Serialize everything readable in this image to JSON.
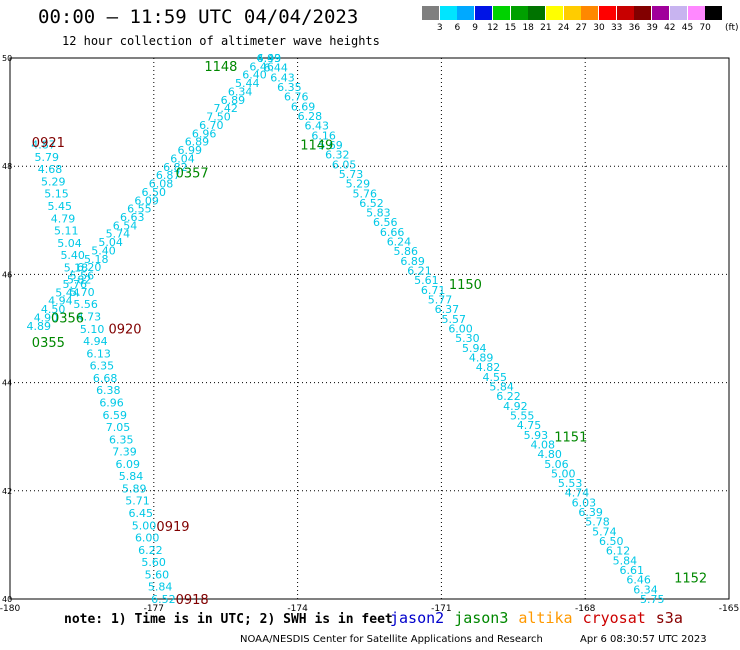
{
  "header": {
    "title": "00:00 – 11:59 UTC 04/04/2023",
    "subtitle": "12 hour collection of altimeter wave heights"
  },
  "colorbar": {
    "labels": [
      "3",
      "6",
      "9",
      "12",
      "15",
      "18",
      "21",
      "24",
      "27",
      "30",
      "33",
      "36",
      "39",
      "42",
      "45",
      "70"
    ],
    "unit": "(ft)",
    "colors": [
      "#7f7f7f",
      "#00e5ff",
      "#00a9ff",
      "#0014e6",
      "#00d200",
      "#00a000",
      "#007300",
      "#ffff00",
      "#ffcc00",
      "#ff8800",
      "#ff0000",
      "#c80000",
      "#820000",
      "#a0009b",
      "#c8b4f0",
      "#ff88ff",
      "#000000"
    ]
  },
  "chart_data": {
    "type": "scatter",
    "title": "00:00 – 11:59 UTC 04/04/2023",
    "subtitle": "12 hour collection of altimeter wave heights",
    "xlim": [
      -180,
      -165
    ],
    "ylim": [
      40,
      50
    ],
    "x_ticks": [
      "-180",
      "-177",
      "-174",
      "-171",
      "-168",
      "-165"
    ],
    "y_ticks": [
      "40",
      "42",
      "44",
      "46",
      "48",
      "50"
    ],
    "grid": true,
    "colors": {
      "swh": "#00c8e6",
      "jason3": "#008800",
      "cryosat": "#800000"
    },
    "times": [
      {
        "label": "1148",
        "sat": "jason3",
        "lon": -175.6,
        "lat": 49.85
      },
      {
        "label": "1149",
        "sat": "jason3",
        "lon": -173.6,
        "lat": 48.4
      },
      {
        "label": "0357",
        "sat": "jason3",
        "lon": -176.2,
        "lat": 47.88
      },
      {
        "label": "1150",
        "sat": "jason3",
        "lon": -170.5,
        "lat": 45.82
      },
      {
        "label": "0356",
        "sat": "jason3",
        "lon": -178.8,
        "lat": 45.2
      },
      {
        "label": "0355",
        "sat": "jason3",
        "lon": -179.2,
        "lat": 44.75
      },
      {
        "label": "1151",
        "sat": "jason3",
        "lon": -168.3,
        "lat": 43.0
      },
      {
        "label": "1152",
        "sat": "jason3",
        "lon": -165.8,
        "lat": 40.4
      },
      {
        "label": "0921",
        "sat": "cryosat",
        "lon": -179.2,
        "lat": 48.45
      },
      {
        "label": "0920",
        "sat": "cryosat",
        "lon": -177.6,
        "lat": 45.0
      },
      {
        "label": "0919",
        "sat": "cryosat",
        "lon": -176.6,
        "lat": 41.35
      },
      {
        "label": "0918",
        "sat": "cryosat",
        "lon": -176.2,
        "lat": 40.0
      }
    ],
    "tracks": [
      {
        "name": "track_desc_east",
        "start": [
          -174.6,
          50.0
        ],
        "end": [
          -166.6,
          40.0
        ],
        "values": [
          "6.49",
          "6.44",
          "6.43",
          "6.35",
          "6.76",
          "6.69",
          "6.28",
          "6.43",
          "6.16",
          "5.69",
          "6.32",
          "6.05",
          "5.73",
          "5.29",
          "5.76",
          "6.52",
          "5.83",
          "6.56",
          "6.66",
          "6.24",
          "5.86",
          "6.89",
          "6.21",
          "5.61",
          "6.71",
          "5.77",
          "6.37",
          "5.57",
          "6.00",
          "5.30",
          "5.94",
          "4.89",
          "4.82",
          "4.55",
          "5.84",
          "6.22",
          "4.92",
          "5.55",
          "4.75",
          "5.93",
          "4.08",
          "4.80",
          "5.06",
          "5.00",
          "5.53",
          "4.74",
          "6.03",
          "6.39",
          "5.78",
          "5.74",
          "6.50",
          "6.12",
          "5.84",
          "6.61",
          "6.46",
          "6.34",
          "5.75"
        ]
      },
      {
        "name": "track_asc_west",
        "start": [
          -179.4,
          45.05
        ],
        "end": [
          -174.6,
          50.0
        ],
        "values": [
          "4.89",
          "4.90",
          "4.50",
          "4.94",
          "5.44",
          "5.76",
          "5.56",
          "6.20",
          "5.18",
          "5.40",
          "5.04",
          "5.74",
          "6.54",
          "6.63",
          "6.55",
          "6.09",
          "6.50",
          "6.08",
          "6.87",
          "6.82",
          "6.04",
          "6.99",
          "6.89",
          "6.96",
          "6.70",
          "7.50",
          "7.42",
          "6.89",
          "6.34",
          "5.44",
          "6.40",
          "6.46",
          "4.93"
        ]
      },
      {
        "name": "track_desc_west",
        "start": [
          -179.3,
          48.4
        ],
        "end": [
          -176.8,
          40.0
        ],
        "values": [
          "4.87",
          "5.79",
          "4.68",
          "5.29",
          "5.15",
          "5.45",
          "4.79",
          "5.11",
          "5.04",
          "5.40",
          "5.18",
          "5.82",
          "5.70",
          "5.56",
          "4.73",
          "5.10",
          "4.94",
          "6.13",
          "6.35",
          "6.68",
          "6.38",
          "6.96",
          "6.59",
          "7.05",
          "6.35",
          "7.39",
          "6.09",
          "5.84",
          "5.89",
          "5.71",
          "6.45",
          "5.00",
          "6.00",
          "6.22",
          "5.60",
          "5.60",
          "5.84",
          "6.52"
        ]
      }
    ]
  },
  "footer": {
    "note": "note: 1) Time is in UTC; 2) SWH is in feet",
    "satellites": [
      {
        "name": "jason2",
        "color": "#0000cc"
      },
      {
        "name": "jason3",
        "color": "#008800"
      },
      {
        "name": "altika",
        "color": "#ff9900"
      },
      {
        "name": "cryosat",
        "color": "#cc0000"
      },
      {
        "name": "s3a",
        "color": "#880000"
      }
    ],
    "credit": "NOAA/NESDIS Center for Satellite Applications and Research",
    "timestamp": "Apr  6 08:30:57 UTC 2023"
  }
}
